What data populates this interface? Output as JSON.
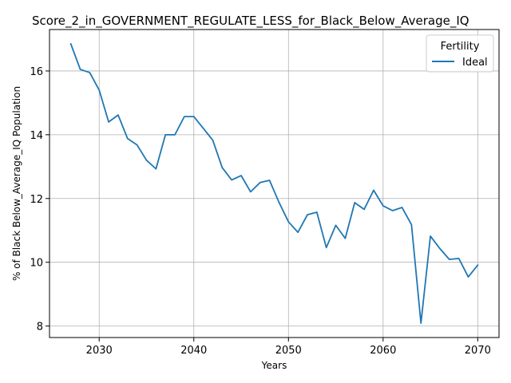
{
  "chart_data": {
    "type": "line",
    "title": "Score_2_in_GOVERNMENT_REGULATE_LESS_for_Black_Below_Average_IQ",
    "xlabel": "Years",
    "ylabel": "% of Black Below_Average_IQ Population",
    "xlim": [
      2024.75,
      2072.25
    ],
    "ylim": [
      7.64,
      17.3
    ],
    "x_ticks": [
      2030,
      2040,
      2050,
      2060,
      2070
    ],
    "y_ticks": [
      8,
      10,
      12,
      14,
      16
    ],
    "grid": true,
    "legend": {
      "title": "Fertility",
      "placement": "top-right"
    },
    "series": [
      {
        "name": "Ideal",
        "color": "#1f77b4",
        "x": [
          2027,
          2028,
          2029,
          2030,
          2031,
          2032,
          2033,
          2034,
          2035,
          2036,
          2037,
          2038,
          2039,
          2040,
          2041,
          2042,
          2043,
          2044,
          2045,
          2046,
          2047,
          2048,
          2049,
          2050,
          2051,
          2052,
          2053,
          2054,
          2055,
          2056,
          2057,
          2058,
          2059,
          2060,
          2061,
          2062,
          2063,
          2064,
          2065,
          2066,
          2067,
          2068,
          2069,
          2070
        ],
        "values": [
          16.85,
          16.05,
          15.95,
          15.4,
          14.4,
          14.62,
          13.88,
          13.68,
          13.2,
          12.93,
          14.0,
          14.0,
          14.57,
          14.57,
          14.2,
          13.83,
          12.97,
          12.58,
          12.72,
          12.21,
          12.5,
          12.57,
          11.88,
          11.27,
          10.94,
          11.49,
          11.57,
          10.46,
          11.16,
          10.75,
          11.87,
          11.66,
          12.26,
          11.77,
          11.62,
          11.72,
          11.18,
          8.09,
          10.82,
          10.43,
          10.09,
          10.12,
          9.54,
          9.91
        ]
      }
    ]
  }
}
